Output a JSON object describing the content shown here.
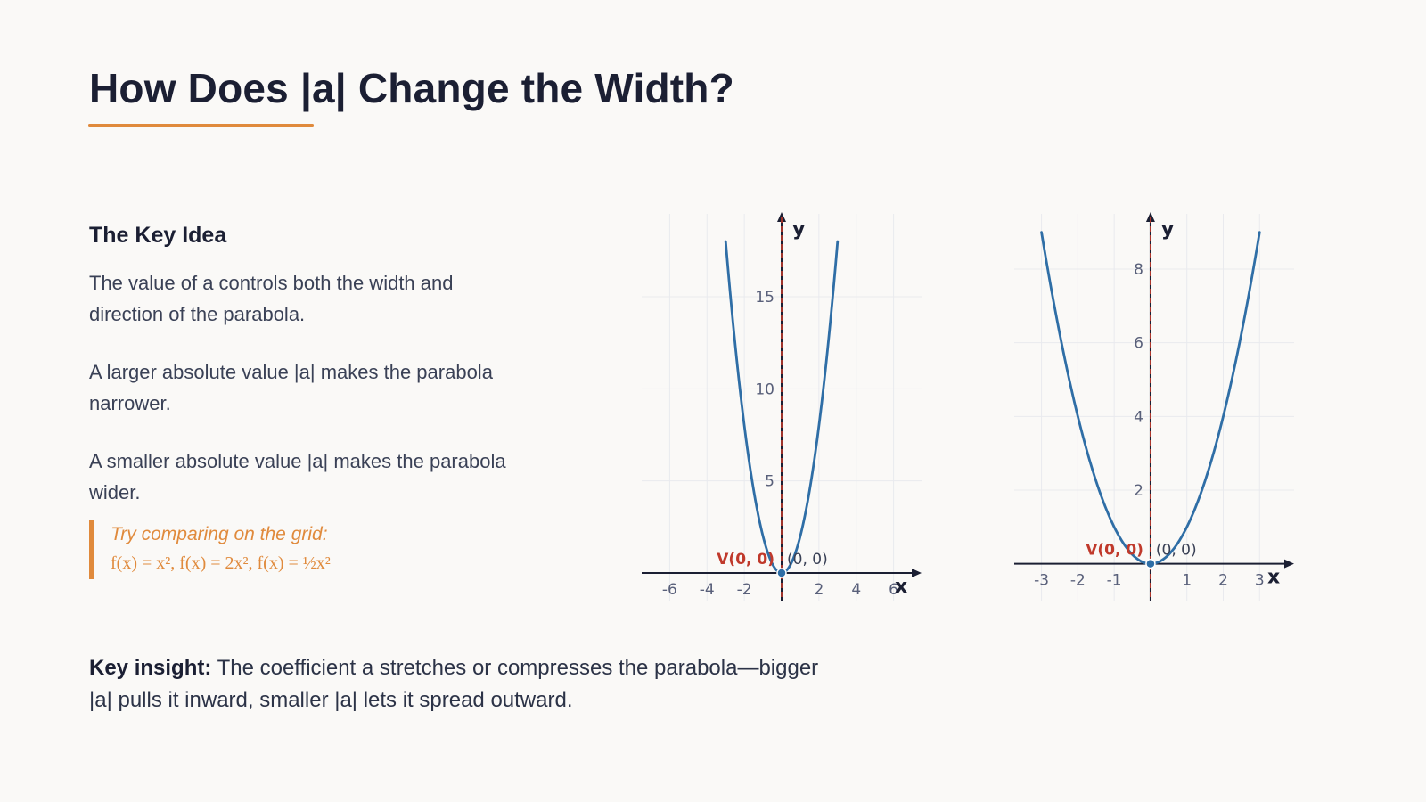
{
  "header": {
    "title": "How Does |a| Change the Width?"
  },
  "key_idea": {
    "heading": "The Key Idea",
    "paragraphs": [
      "The value of a controls both the width and direction of the parabola.",
      "A larger absolute value |a| makes the parabola narrower.",
      "A smaller absolute value |a| makes the parabola wider."
    ],
    "callout": {
      "title": "Try comparing on the grid:",
      "formulas": "f(x) = x², f(x) = 2x², f(x) = ½x²"
    }
  },
  "insight": {
    "label": "Key insight:",
    "text": " The coefficient a stretches or compresses the parabola—bigger |a| pulls it inward, smaller |a| lets it spread outward."
  },
  "colors": {
    "accent": "#e08a3c",
    "curve": "#2f6ea6",
    "axis_of_symmetry": "#c0392b",
    "vertex_label": "#c0392b"
  },
  "chart_data": [
    {
      "type": "line",
      "function": "f(x) = 2x²",
      "a": 2,
      "x_range": [
        -3,
        3
      ],
      "xlim": [
        -7.5,
        7.5
      ],
      "ylim": [
        -1.5,
        19.5
      ],
      "xticks": [
        -6,
        -4,
        -2,
        2,
        4,
        6
      ],
      "yticks": [
        5,
        10,
        15
      ],
      "xlabel": "x",
      "ylabel": "y",
      "vertex": [
        0,
        0
      ],
      "vertex_label": "V(0, 0)",
      "point_label": "(0, 0)",
      "axis_of_symmetry": 0,
      "grid": true
    },
    {
      "type": "line",
      "function": "f(x) = x²",
      "a": 1,
      "x_range": [
        -3,
        3
      ],
      "xlim": [
        -3.75,
        3.95
      ],
      "ylim": [
        -1,
        9.5
      ],
      "xticks": [
        -3,
        -2,
        -1,
        1,
        2,
        3
      ],
      "yticks": [
        2,
        4,
        6,
        8
      ],
      "xlabel": "x",
      "ylabel": "y",
      "vertex": [
        0,
        0
      ],
      "vertex_label": "V(0, 0)",
      "point_label": "(0, 0)",
      "axis_of_symmetry": 0,
      "grid": true
    }
  ]
}
